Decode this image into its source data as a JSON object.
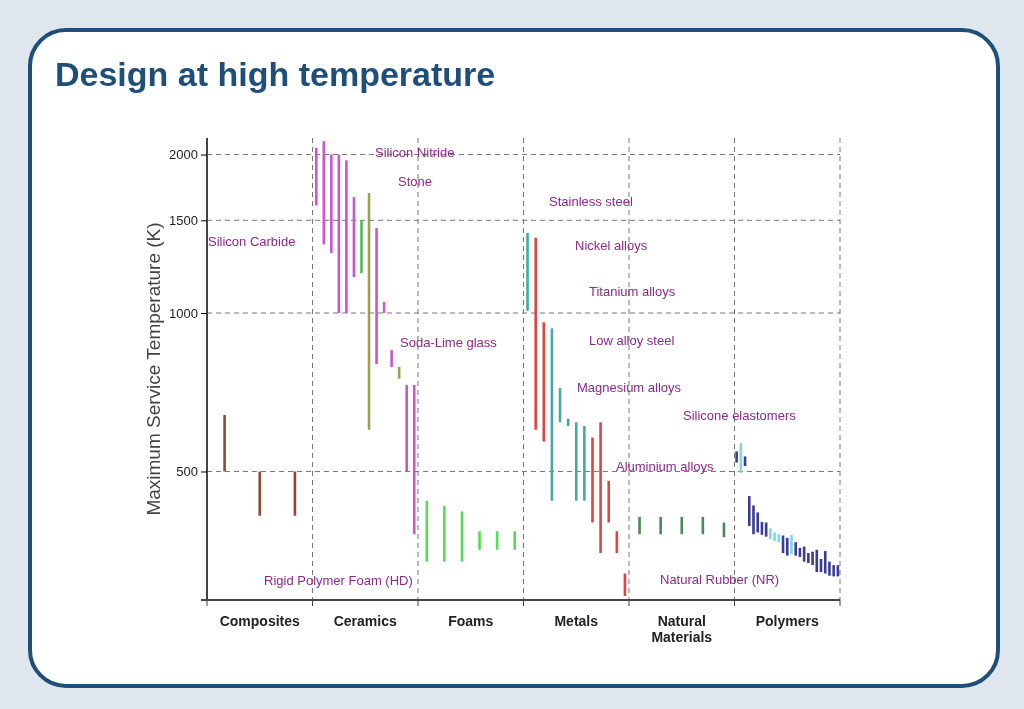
{
  "chart_data": {
    "type": "bar",
    "title": "Design at high temperature",
    "ylabel": "Maximum Service Temperature (K)",
    "categories": [
      "Composites",
      "Ceramics",
      "Foams",
      "Metals",
      "Natural Materials",
      "Polymers"
    ],
    "log": true,
    "ylim": [
      285,
      2150
    ],
    "yticks": [
      500,
      1000,
      1500,
      2000
    ],
    "grid": true,
    "series": [
      {
        "values": [
          140,
          460,
          103,
          410,
          30,
          26
        ],
        "base": [
          500,
          1600,
          337,
          1010,
          380,
          520
        ],
        "colors": [
          "#8b4a3c",
          "#cc55cc",
          "#55dd55",
          "#44aaa0",
          "#4a8a5a",
          "#3b3b8f"
        ]
      },
      {
        "values": [
          88,
          770,
          93,
          790,
          30,
          69
        ],
        "base": [
          412,
          1350,
          337,
          600,
          380,
          497
        ],
        "colors": [
          "#8b4a3c",
          "#cc55cc",
          "#55dd55",
          "#dd4444",
          "#4a8a5a",
          "#7fd6e6"
        ]
      },
      {
        "values": [
          88,
          700,
          83,
          390,
          30,
          22
        ],
        "base": [
          412,
          1300,
          337,
          570,
          380,
          512
        ],
        "colors": [
          "#8b4a3c",
          "#cc55cc",
          "#55dd55",
          "#dd4444",
          "#4a8a5a",
          "#3b3b8f"
        ]
      },
      {
        "values": [
          null,
          1000,
          30,
          495,
          30,
          55
        ],
        "base": [
          null,
          1000,
          355,
          440,
          380,
          394
        ],
        "colors": [
          null,
          "#cc55cc",
          "#55dd55",
          "#44aaa0",
          "#4a8a5a",
          "#3b3b8f"
        ]
      },
      {
        "values": [
          null,
          950,
          30,
          100,
          25,
          51
        ],
        "base": [
          null,
          1000,
          355,
          620,
          375,
          380
        ],
        "colors": [
          null,
          "#cc55cc",
          "#55dd55",
          "#44aaa0",
          "#4a8a5a",
          "#3b3b8f"
        ]
      },
      {
        "values": [
          null,
          490,
          30,
          20,
          null,
          35
        ],
        "base": [
          null,
          1170,
          355,
          610,
          null,
          383
        ],
        "colors": [
          null,
          "#cc55cc",
          "#55dd55",
          "#44aaa0",
          null,
          "#3b3b8f"
        ]
      },
      {
        "values": [
          null,
          310,
          null,
          180,
          null,
          22
        ],
        "base": [
          null,
          1190,
          null,
          440,
          null,
          379
        ],
        "colors": [
          null,
          "#55bb55",
          null,
          "#44aaa0",
          null,
          "#3b3b8f"
        ]
      },
      {
        "values": [
          null,
          1090,
          null,
          170,
          null,
          24
        ],
        "base": [
          null,
          600,
          null,
          440,
          null,
          376
        ],
        "colors": [
          null,
          "#a0a050",
          null,
          "#44aaa0",
          null,
          "#3b3b8f"
        ]
      },
      {
        "values": [
          null,
          650,
          null,
          180,
          null,
          18
        ],
        "base": [
          null,
          800,
          null,
          400,
          null,
          372
        ],
        "colors": [
          null,
          "#cc55cc",
          null,
          "#dd4444",
          null,
          "#7fd6e6"
        ]
      },
      {
        "values": [
          null,
          50,
          null,
          270,
          null,
          14
        ],
        "base": [
          null,
          1000,
          null,
          350,
          null,
          369
        ],
        "colors": [
          null,
          "#cc55cc",
          null,
          "#dd4444",
          null,
          "#7fd6e6"
        ]
      },
      {
        "values": [
          null,
          60,
          null,
          80,
          null,
          13
        ],
        "base": [
          null,
          790,
          null,
          400,
          null,
          367
        ],
        "colors": [
          null,
          "#cc55cc",
          null,
          "#dd4444",
          null,
          "#7fd6e6"
        ]
      },
      {
        "values": [
          null,
          40,
          null,
          35,
          null,
          28
        ],
        "base": [
          null,
          750,
          null,
          350,
          null,
          350
        ],
        "colors": [
          null,
          "#a0a050",
          null,
          "#dd4444",
          null,
          "#3b3b8f"
        ]
      },
      {
        "values": [
          null,
          230,
          null,
          30,
          null,
          28
        ],
        "base": [
          null,
          500,
          null,
          290,
          null,
          346
        ],
        "colors": [
          null,
          "#cc55cc",
          null,
          "#dd4444",
          null,
          "#3b3b8f"
        ]
      },
      {
        "values": [
          null,
          350,
          null,
          null,
          null,
          31
        ],
        "base": [
          null,
          380,
          null,
          null,
          null,
          348
        ],
        "colors": [
          null,
          "#cc55cc",
          null,
          null,
          null,
          "#7fd6e6"
        ]
      },
      {
        "values": [
          null,
          null,
          null,
          null,
          null,
          21
        ],
        "base": [
          null,
          null,
          null,
          null,
          null,
          346
        ],
        "color": "#3b3b8f"
      },
      {
        "values": [
          null,
          null,
          null,
          null,
          null,
          14
        ],
        "base": [
          null,
          null,
          null,
          null,
          null,
          344
        ],
        "color": "#3b3b8f"
      },
      {
        "values": [
          null,
          null,
          null,
          null,
          null,
          23
        ],
        "base": [
          null,
          null,
          null,
          null,
          null,
          337
        ],
        "color": "#3b3b8f"
      },
      {
        "values": [
          null,
          null,
          null,
          null,
          null,
          15
        ],
        "base": [
          null,
          null,
          null,
          null,
          null,
          335
        ],
        "color": "#3b3b8f"
      },
      {
        "values": [
          null,
          null,
          null,
          null,
          null,
          20
        ],
        "base": [
          null,
          null,
          null,
          null,
          null,
          332
        ],
        "color": "#3b3b8f"
      },
      {
        "values": [
          null,
          null,
          null,
          null,
          null,
          33
        ],
        "base": [
          null,
          null,
          null,
          null,
          null,
          322
        ],
        "color": "#3b3b8f"
      },
      {
        "values": [
          null,
          null,
          null,
          null,
          null,
          19
        ],
        "base": [
          null,
          null,
          null,
          null,
          null,
          322
        ],
        "color": "#3b3b8f"
      },
      {
        "values": [
          null,
          null,
          null,
          null,
          null,
          33
        ],
        "base": [
          null,
          null,
          null,
          null,
          null,
          320
        ],
        "color": "#3b3b8f"
      },
      {
        "values": [
          null,
          null,
          null,
          null,
          null,
          20
        ],
        "base": [
          null,
          null,
          null,
          null,
          null,
          317
        ],
        "color": "#3b3b8f"
      },
      {
        "values": [
          null,
          null,
          null,
          null,
          null,
          16
        ],
        "base": [
          null,
          null,
          null,
          null,
          null,
          316
        ],
        "color": "#3b3b8f"
      },
      {
        "values": [
          null,
          null,
          null,
          null,
          null,
          16
        ],
        "base": [
          null,
          null,
          null,
          null,
          null,
          316
        ],
        "color": "#3b3b8f"
      }
    ],
    "annotations": [
      "Silicon Nitride",
      "Stone",
      "Silicon Carbide",
      "Soda-Lime glass",
      "Rigid Polymer Foam (HD)",
      "Stainless steel",
      "Nickel alloys",
      "Titanium alloys",
      "Low alloy steel",
      "Magnesium alloys",
      "Aluminium alloys",
      "Silicone elastomers",
      "Natural Rubber (NR)"
    ]
  }
}
